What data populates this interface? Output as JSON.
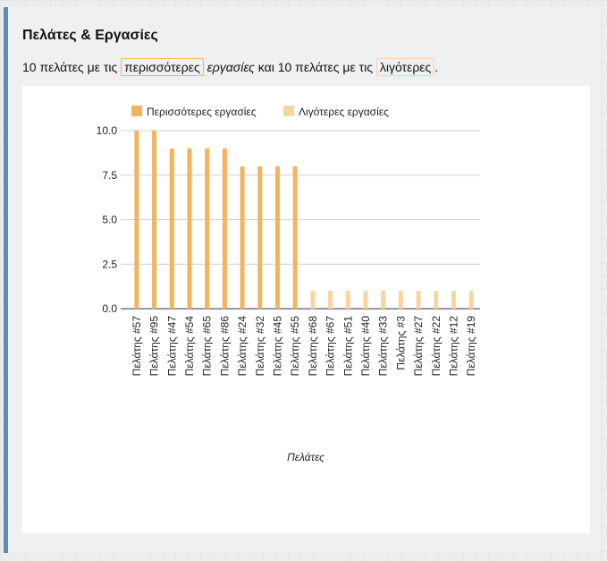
{
  "header": {
    "title": "Πελάτες & Εργασίες",
    "desc_prefix": "10 πελάτες με τις",
    "desc_more": "περισσότερες",
    "desc_italic": "εργασίες",
    "desc_middle": "και 10 πελάτες με τις",
    "desc_less": "λιγότερες",
    "desc_end": "."
  },
  "colors": {
    "more": "#f5b35c",
    "less": "#f9d4a0",
    "accent": "#5b8cc0",
    "grid": "#cfcfcf"
  },
  "chart_data": {
    "type": "bar",
    "title": "",
    "xlabel": "Πελάτες",
    "ylabel": "",
    "ylim": [
      0,
      10
    ],
    "yticks": [
      "0.0",
      "2.5",
      "5.0",
      "7.5",
      "10.0"
    ],
    "legend_position": "top",
    "categories": [
      "Πελάτης #57",
      "Πελάτης #95",
      "Πελάτης #47",
      "Πελάτης #54",
      "Πελάτης #65",
      "Πελάτης #86",
      "Πελάτης #24",
      "Πελάτης #32",
      "Πελάτης #45",
      "Πελάτης #55",
      "Πελάτης #68",
      "Πελάτης #67",
      "Πελάτης #51",
      "Πελάτης #40",
      "Πελάτης #33",
      "Πελάτης #3",
      "Πελάτης #27",
      "Πελάτης #22",
      "Πελάτης #12",
      "Πελάτης #19"
    ],
    "series": [
      {
        "name": "Περισσότερες εργασίες",
        "values": [
          10,
          10,
          9,
          9,
          9,
          9,
          8,
          8,
          8,
          8,
          null,
          null,
          null,
          null,
          null,
          null,
          null,
          null,
          null,
          null
        ]
      },
      {
        "name": "Λιγότερες εργασίες",
        "values": [
          null,
          null,
          null,
          null,
          null,
          null,
          null,
          null,
          null,
          null,
          1,
          1,
          1,
          1,
          1,
          1,
          1,
          1,
          1,
          1
        ]
      }
    ]
  }
}
